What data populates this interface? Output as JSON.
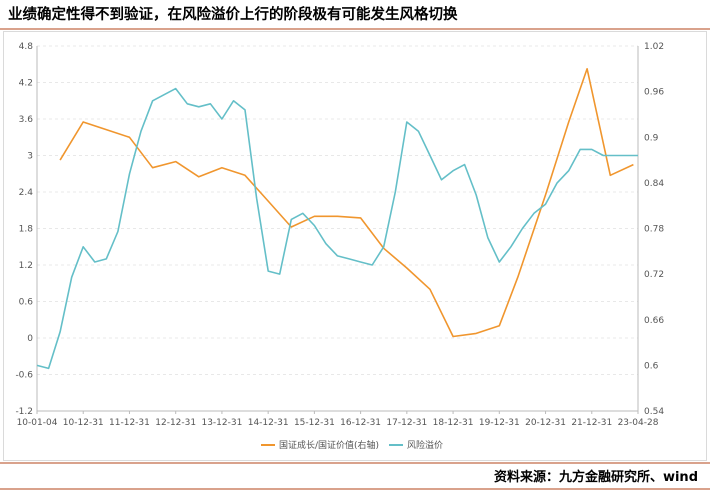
{
  "title": "业绩确定性得不到验证，在风险溢价上行的阶段极有可能发生风格切换",
  "source": "资料来源：九方金融研究所、wind",
  "chart_data": {
    "type": "line",
    "x_ticks": [
      "10-01-04",
      "10-12-31",
      "11-12-31",
      "12-12-31",
      "13-12-31",
      "14-12-31",
      "15-12-31",
      "16-12-31",
      "17-12-31",
      "18-12-31",
      "19-12-31",
      "20-12-31",
      "21-12-31",
      "23-04-28"
    ],
    "y_left": {
      "ticks": [
        "4.8",
        "4.2",
        "3.6",
        "3",
        "2.4",
        "1.8",
        "1.2",
        "0.6",
        "0",
        "-0.6",
        "-1.2"
      ],
      "range": [
        -1.2,
        4.8
      ]
    },
    "y_right": {
      "ticks": [
        "1.02",
        "0.96",
        "0.9",
        "0.84",
        "0.78",
        "0.72",
        "0.66",
        "0.6",
        "0.54"
      ],
      "range": [
        0.54,
        1.02
      ]
    },
    "grid": true,
    "legend_position": "bottom",
    "series": [
      {
        "name": "国证成长/国证价值(右轴)",
        "axis": "right",
        "color": "#f0962e",
        "x": [
          0.5,
          1.0,
          2.0,
          2.5,
          3.0,
          3.5,
          4.0,
          4.5,
          5.0,
          5.5,
          6.0,
          6.5,
          7.0,
          7.5,
          8.0,
          8.5,
          9.0,
          9.5,
          10.0,
          10.4,
          11.0,
          11.5,
          11.9,
          12.4,
          12.9
        ],
        "values": [
          0.87,
          0.92,
          0.9,
          0.86,
          0.868,
          0.848,
          0.86,
          0.85,
          0.816,
          0.782,
          0.796,
          0.796,
          0.794,
          0.754,
          0.728,
          0.7,
          0.638,
          0.642,
          0.652,
          0.716,
          0.824,
          0.92,
          0.99,
          0.85,
          0.864
        ]
      },
      {
        "name": "风险溢价",
        "axis": "left",
        "color": "#64bfc8",
        "x": [
          0.0,
          0.25,
          0.5,
          0.75,
          1.0,
          1.25,
          1.5,
          1.75,
          2.0,
          2.25,
          2.5,
          2.75,
          3.0,
          3.25,
          3.5,
          3.75,
          4.0,
          4.25,
          4.5,
          4.75,
          5.0,
          5.25,
          5.5,
          5.75,
          6.0,
          6.25,
          6.5,
          6.75,
          7.0,
          7.25,
          7.5,
          7.75,
          8.0,
          8.25,
          8.5,
          8.75,
          9.0,
          9.25,
          9.5,
          9.75,
          10.0,
          10.25,
          10.5,
          10.75,
          11.0,
          11.25,
          11.5,
          11.75,
          12.0,
          12.25,
          12.5,
          12.75,
          13.0
        ],
        "values": [
          -0.45,
          -0.5,
          0.1,
          1.0,
          1.5,
          1.25,
          1.3,
          1.75,
          2.7,
          3.4,
          3.9,
          4.0,
          4.1,
          3.85,
          3.8,
          3.85,
          3.6,
          3.9,
          3.75,
          2.3,
          1.1,
          1.05,
          1.95,
          2.05,
          1.85,
          1.55,
          1.35,
          1.3,
          1.25,
          1.2,
          1.5,
          2.4,
          3.55,
          3.4,
          3.0,
          2.6,
          2.75,
          2.85,
          2.35,
          1.65,
          1.25,
          1.5,
          1.8,
          2.05,
          2.2,
          2.55,
          2.75,
          3.1,
          3.1,
          3.0,
          3.0,
          3.0,
          3.0
        ]
      }
    ]
  }
}
